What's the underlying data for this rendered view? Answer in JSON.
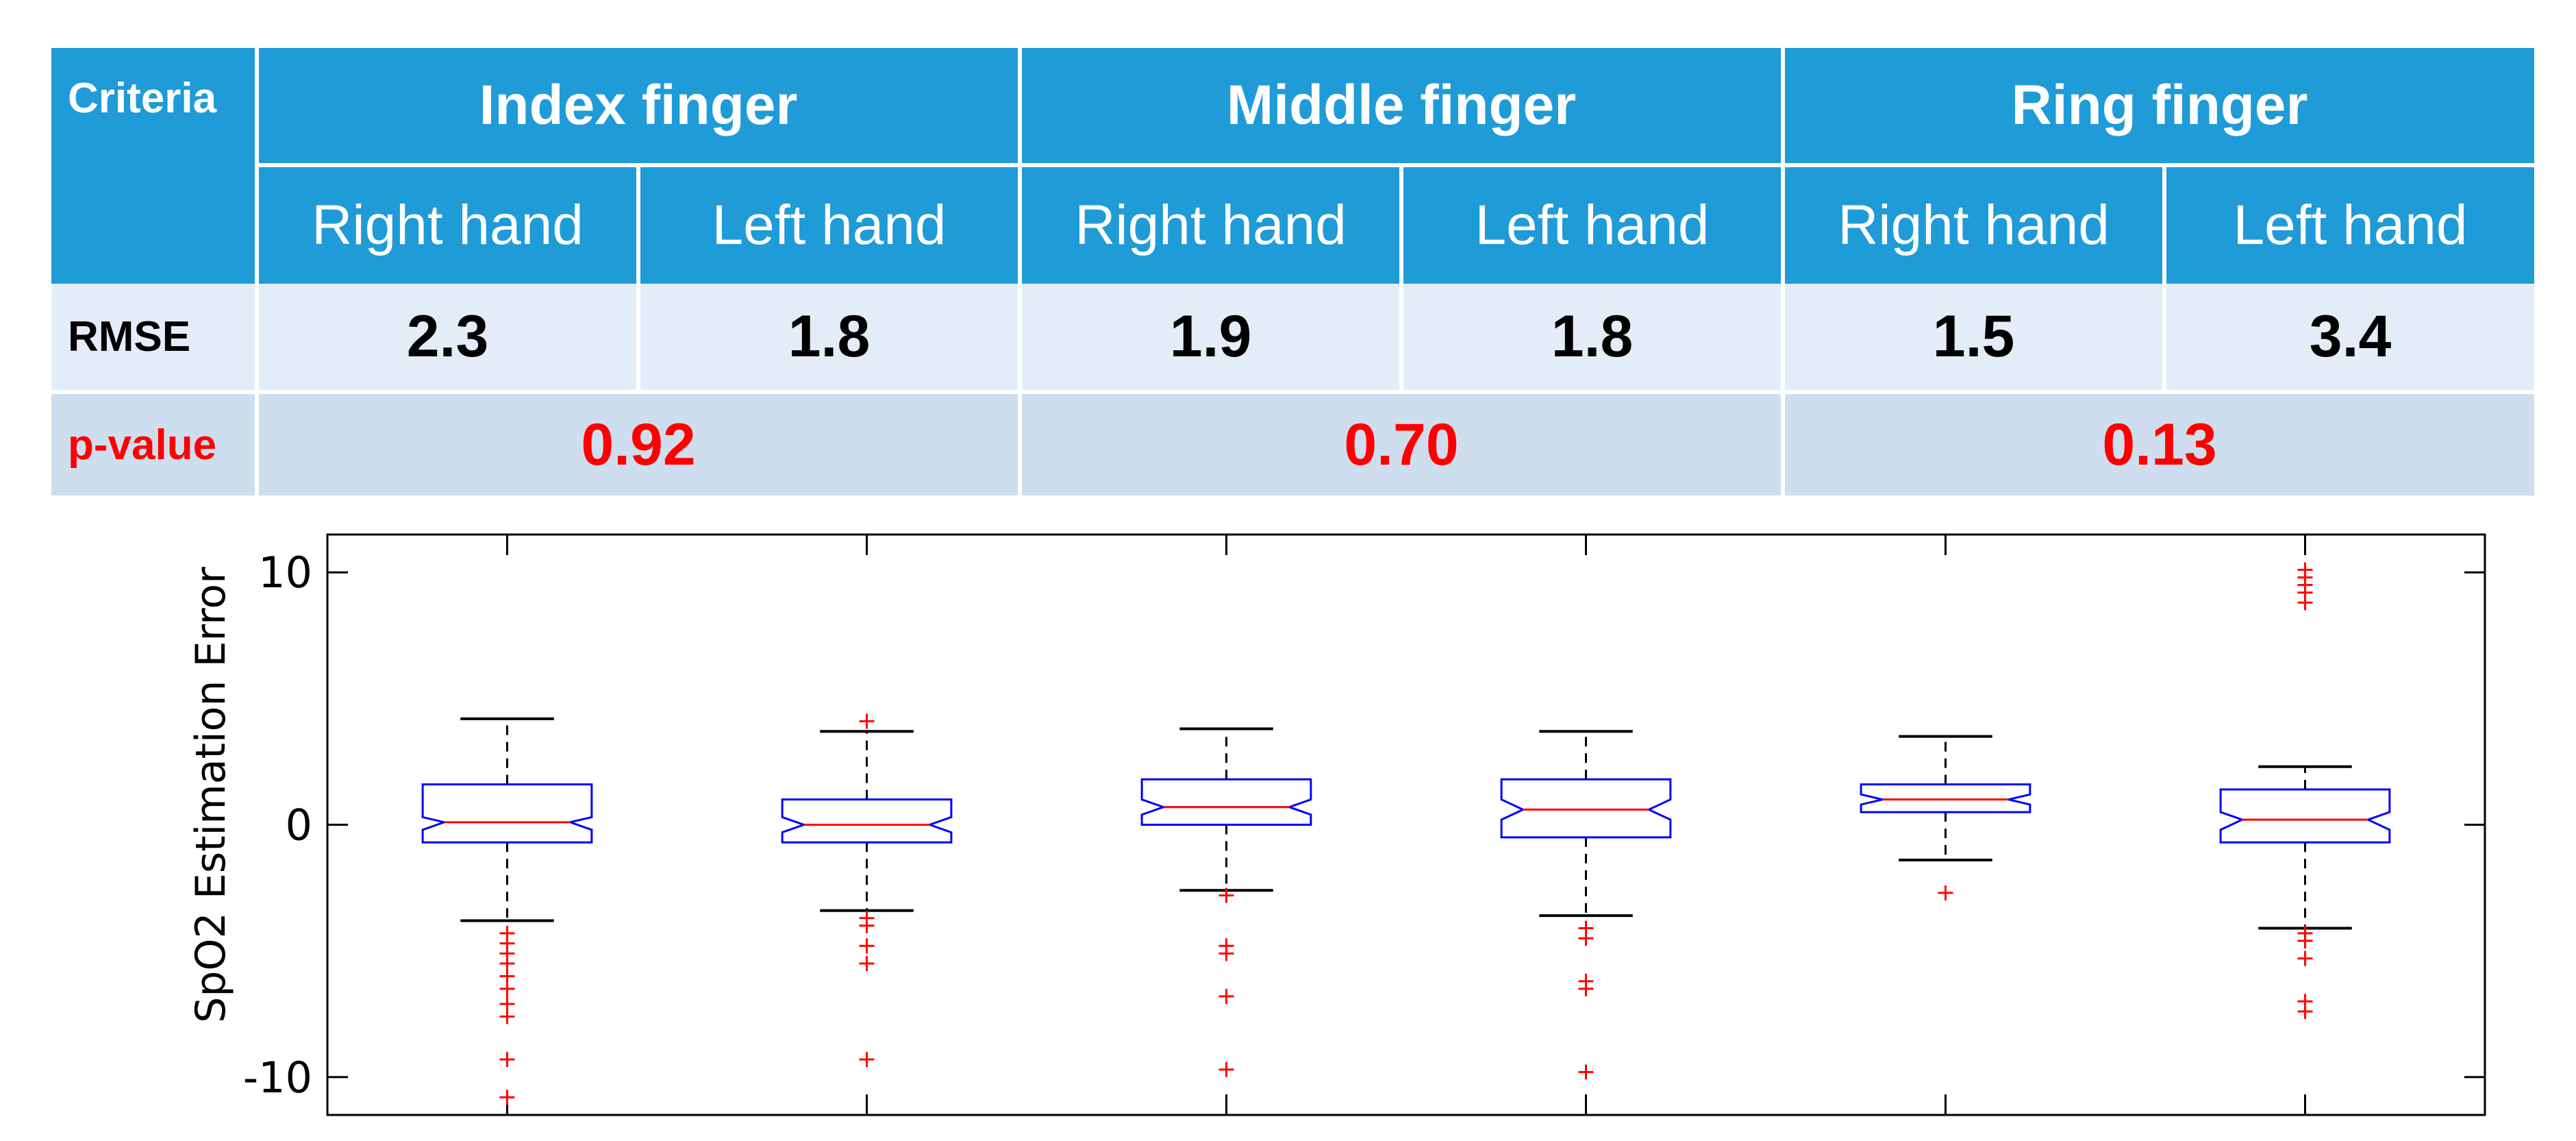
{
  "table": {
    "criteria_label": "Criteria",
    "groups": [
      {
        "label": "Index finger"
      },
      {
        "label": "Middle finger"
      },
      {
        "label": "Ring finger"
      }
    ],
    "subheaders": [
      "Right hand",
      "Left hand",
      "Right hand",
      "Left hand",
      "Right hand",
      "Left hand"
    ],
    "rmse_label": "RMSE",
    "rmse_values": [
      "2.3",
      "1.8",
      "1.9",
      "1.8",
      "1.5",
      "3.4"
    ],
    "pvalue_label": "p-value",
    "pvalues": [
      "0.92",
      "0.70",
      "0.13"
    ]
  },
  "chart_data": {
    "type": "boxplot",
    "ylabel": "SpO2 Estimation Error",
    "ylim": [
      -11.5,
      11.5
    ],
    "yticks": [
      -10,
      0,
      10
    ],
    "notched": true,
    "colors": {
      "box": "#0000ff",
      "median": "#ff0000",
      "outlier": "#ff0000",
      "whisker": "#000000"
    },
    "boxes": [
      {
        "q1": -0.7,
        "median": 0.1,
        "q3": 1.6,
        "notch_low": -0.2,
        "notch_high": 0.3,
        "whisker_low": -3.8,
        "whisker_high": 4.2,
        "outliers": [
          -4.3,
          -4.7,
          -5.1,
          -5.5,
          -6.0,
          -6.5,
          -7.1,
          -7.6,
          -9.3,
          -10.8
        ]
      },
      {
        "q1": -0.7,
        "median": 0.0,
        "q3": 1.0,
        "notch_low": -0.3,
        "notch_high": 0.3,
        "whisker_low": -3.4,
        "whisker_high": 3.7,
        "outliers": [
          4.1,
          -3.7,
          -4.0,
          -4.8,
          -5.5,
          -9.3
        ]
      },
      {
        "q1": 0.0,
        "median": 0.7,
        "q3": 1.8,
        "notch_low": 0.4,
        "notch_high": 1.0,
        "whisker_low": -2.6,
        "whisker_high": 3.8,
        "outliers": [
          -2.8,
          -4.8,
          -5.1,
          -6.8,
          -9.7
        ]
      },
      {
        "q1": -0.5,
        "median": 0.6,
        "q3": 1.8,
        "notch_low": 0.2,
        "notch_high": 1.0,
        "whisker_low": -3.6,
        "whisker_high": 3.7,
        "outliers": [
          -4.1,
          -4.5,
          -6.2,
          -6.5,
          -9.8
        ]
      },
      {
        "q1": 0.5,
        "median": 1.0,
        "q3": 1.6,
        "notch_low": 0.8,
        "notch_high": 1.2,
        "whisker_low": -1.4,
        "whisker_high": 3.5,
        "outliers": [
          -2.7
        ]
      },
      {
        "q1": -0.7,
        "median": 0.2,
        "q3": 1.4,
        "notch_low": -0.2,
        "notch_high": 0.5,
        "whisker_low": -4.1,
        "whisker_high": 2.3,
        "outliers": [
          9.2,
          9.5,
          9.8,
          10.1,
          8.8,
          -4.3,
          -4.6,
          -5.3,
          -7.0,
          -7.4
        ]
      }
    ]
  }
}
